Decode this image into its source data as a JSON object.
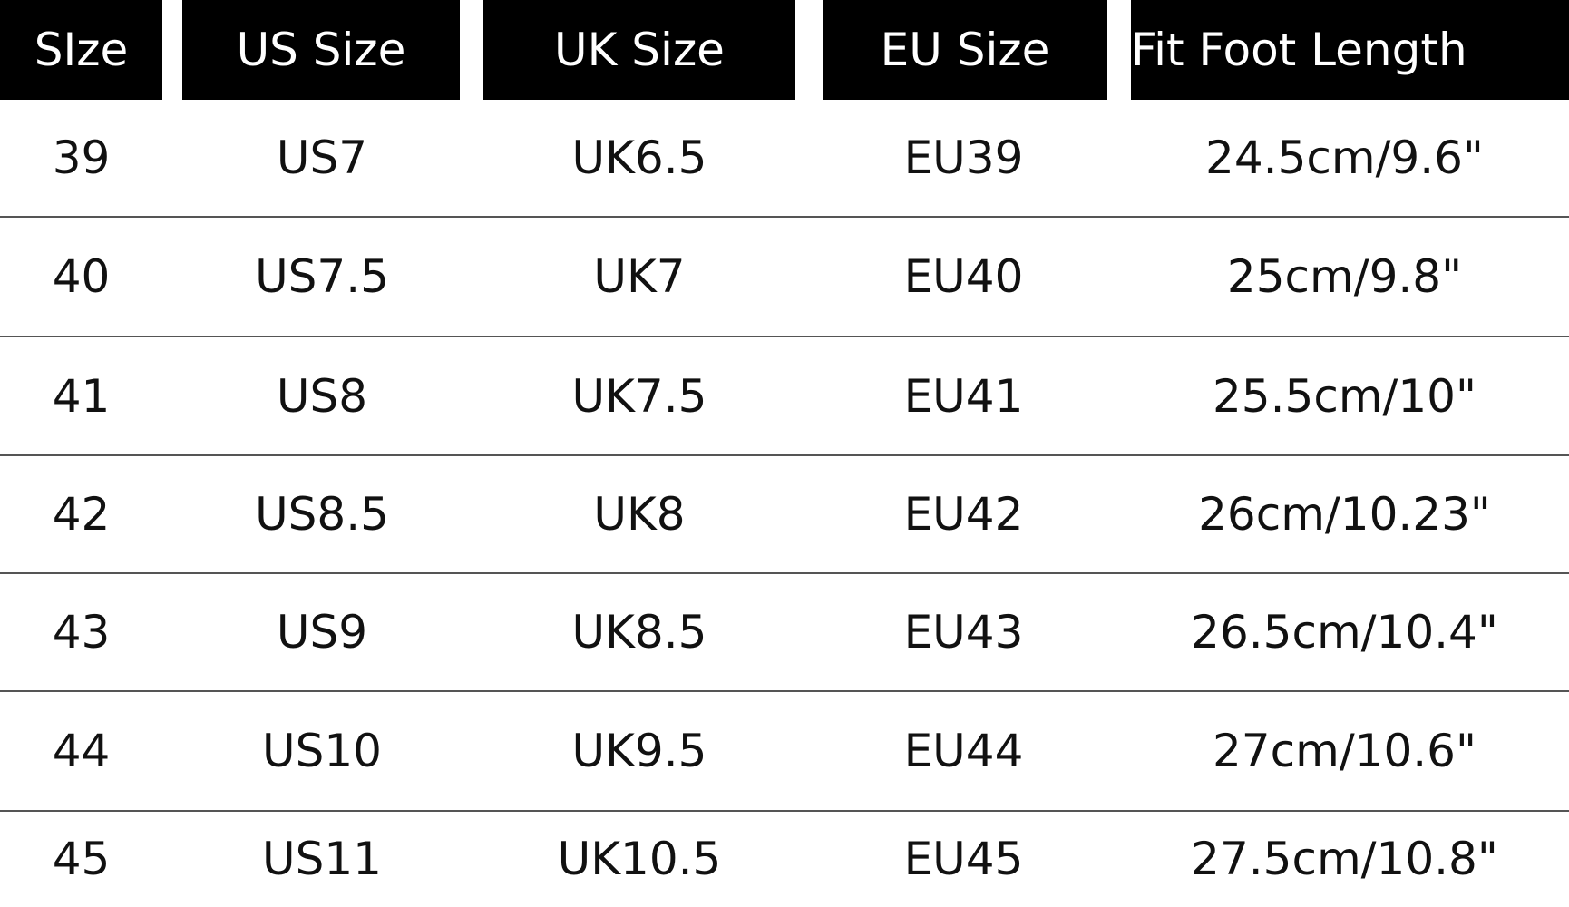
{
  "headers": [
    "SIze",
    "US Size",
    "UK Size",
    "EU Size",
    "Fit Foot Length"
  ],
  "rows": [
    [
      "39",
      "US7",
      "UK6.5",
      "EU39",
      "24.5cm/9.6\""
    ],
    [
      "40",
      "US7.5",
      "UK7",
      "EU40",
      "25cm/9.8\""
    ],
    [
      "41",
      "US8",
      "UK7.5",
      "EU41",
      "25.5cm/10\""
    ],
    [
      "42",
      "US8.5",
      "UK8",
      "EU42",
      "26cm/10.23\""
    ],
    [
      "43",
      "US9",
      "UK8.5",
      "EU43",
      "26.5cm/10.4\""
    ],
    [
      "44",
      "US10",
      "UK9.5",
      "EU44",
      "27cm/10.6\""
    ],
    [
      "45",
      "US11",
      "UK10.5",
      "EU45",
      "27.5cm/10.8\""
    ]
  ],
  "colors": {
    "header_bg": "#000000",
    "header_text": "#ffffff",
    "body_text": "#111111"
  }
}
